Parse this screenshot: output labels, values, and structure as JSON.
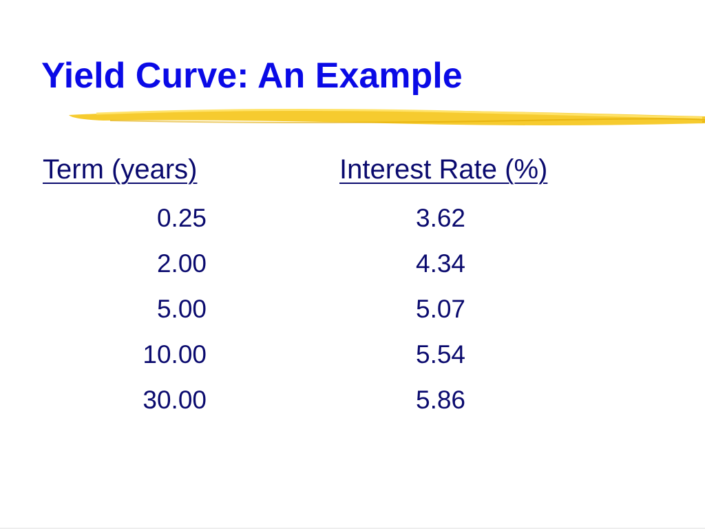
{
  "title": "Yield Curve: An Example",
  "table": {
    "headers": [
      "Term (years)",
      "Interest Rate (%)"
    ],
    "rows": [
      [
        "0.25",
        "3.62"
      ],
      [
        "2.00",
        "4.34"
      ],
      [
        "5.00",
        "5.07"
      ],
      [
        "10.00",
        "5.54"
      ],
      [
        "30.00",
        "5.86"
      ]
    ]
  }
}
